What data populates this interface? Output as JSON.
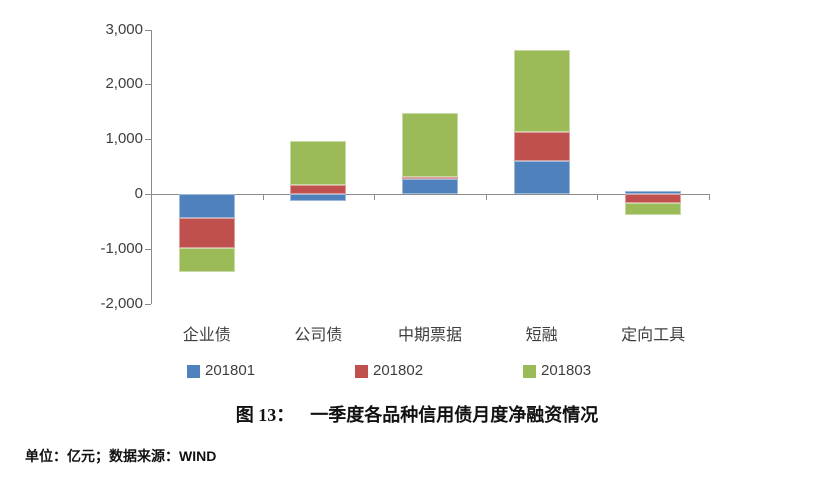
{
  "chart_data": {
    "type": "bar",
    "subtype": "stacked",
    "title": "图 13： 一季度各品种信用债月度净融资情况",
    "categories": [
      "企业债",
      "公司债",
      "中期票据",
      "短融",
      "定向工具"
    ],
    "series": [
      {
        "name": "201801",
        "color": "#4F81BD",
        "values": [
          -440,
          -130,
          270,
          600,
          50
        ]
      },
      {
        "name": "201802",
        "color": "#C0504D",
        "values": [
          -540,
          170,
          35,
          540,
          -160
        ]
      },
      {
        "name": "201803",
        "color": "#9BBB59",
        "values": [
          -450,
          790,
          1180,
          1490,
          -220
        ]
      }
    ],
    "y_axis": {
      "min": -2000,
      "max": 3000,
      "step": 1000,
      "tick_values": [
        3000,
        2000,
        1000,
        0,
        -1000,
        -2000
      ],
      "tick_labels": [
        "3,000",
        "2,000",
        "1,000",
        "0",
        "-1,000",
        "-2,000"
      ]
    },
    "xlabel": "",
    "ylabel": "",
    "unit": "亿元",
    "grid": false,
    "legend_position": "bottom"
  },
  "caption": {
    "label": "图 13：",
    "text": "一季度各品种信用债月度净融资情况"
  },
  "footer": {
    "text": "单位：亿元；数据来源：WIND"
  },
  "colors": {
    "axis": "#8c8c8c",
    "text": "#3f3f3f",
    "series_201801": "#4F81BD",
    "series_201802": "#C0504D",
    "series_201803": "#9BBB59"
  }
}
